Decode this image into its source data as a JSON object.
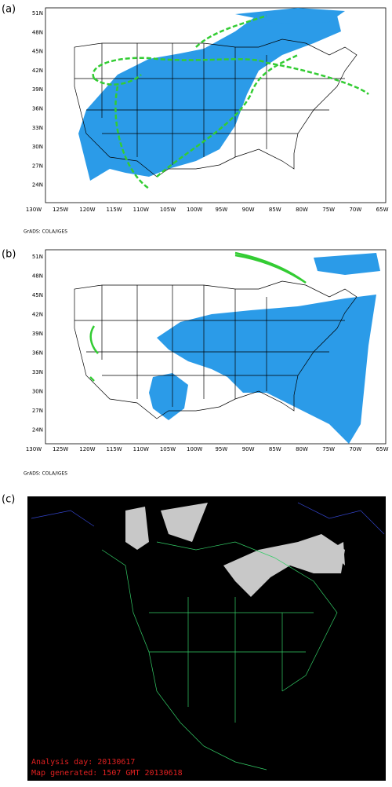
{
  "panels": [
    {
      "label": "(a)",
      "lat_labels": [
        "51N",
        "48N",
        "45N",
        "42N",
        "39N",
        "36N",
        "33N",
        "30N",
        "27N",
        "24N"
      ],
      "lon_labels": [
        "130W",
        "125W",
        "120W",
        "115W",
        "110W",
        "105W",
        "100W",
        "95W",
        "90W",
        "85W",
        "80W",
        "75W",
        "70W",
        "65W"
      ],
      "credit": "GrADS: COLA/IGES"
    },
    {
      "label": "(b)",
      "lat_labels": [
        "51N",
        "48N",
        "45N",
        "42N",
        "39N",
        "36N",
        "33N",
        "30N",
        "27N",
        "24N"
      ],
      "lon_labels": [
        "130W",
        "125W",
        "120W",
        "115W",
        "110W",
        "105W",
        "100W",
        "95W",
        "90W",
        "85W",
        "80W",
        "75W",
        "70W",
        "65W"
      ],
      "credit": "GrADS: COLA/IGES"
    },
    {
      "label": "(c)",
      "analysis": "Analysis day:  20130617",
      "generated": "Map generated: 1507 GMT 20130618"
    }
  ]
}
